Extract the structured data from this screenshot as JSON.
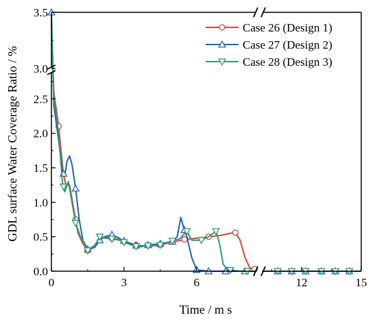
{
  "chart_data": {
    "type": "line",
    "xlabel": "Time / m s",
    "ylabel": "GDL surface Water Coverage Ratio / %",
    "x_ticks": [
      "0",
      "3",
      "6",
      "12",
      "15"
    ],
    "y_ticks": [
      "0.0",
      "0.5",
      "1.0",
      "1.5",
      "2.0",
      "2.5",
      "3.0",
      "3.5"
    ],
    "x_axis_break": [
      8.5,
      10.0
    ],
    "y_axis_break": [
      2.9,
      3.0
    ],
    "xlim": [
      0,
      15
    ],
    "ylim": [
      0,
      3.5
    ],
    "grid": false,
    "legend_position": "top-right",
    "series": [
      {
        "name": "Case 26 (Design 1)",
        "color": "#e0403a",
        "marker": "circle",
        "points": [
          [
            0,
            3.45
          ],
          [
            0.1,
            2.6
          ],
          [
            0.3,
            2.1
          ],
          [
            0.5,
            1.4
          ],
          [
            0.6,
            1.25
          ],
          [
            0.75,
            1.25
          ],
          [
            0.95,
            0.85
          ],
          [
            1.1,
            0.55
          ],
          [
            1.3,
            0.4
          ],
          [
            1.5,
            0.3
          ],
          [
            1.8,
            0.35
          ],
          [
            2.0,
            0.47
          ],
          [
            2.2,
            0.5
          ],
          [
            2.5,
            0.48
          ],
          [
            2.8,
            0.46
          ],
          [
            3.0,
            0.43
          ],
          [
            3.3,
            0.4
          ],
          [
            3.6,
            0.37
          ],
          [
            4.0,
            0.36
          ],
          [
            4.5,
            0.38
          ],
          [
            5.0,
            0.42
          ],
          [
            5.5,
            0.46
          ],
          [
            6.0,
            0.48
          ],
          [
            6.5,
            0.5
          ],
          [
            7.0,
            0.52
          ],
          [
            7.4,
            0.55
          ],
          [
            7.6,
            0.56
          ],
          [
            7.8,
            0.45
          ],
          [
            8.0,
            0.2
          ],
          [
            8.2,
            0.05
          ],
          [
            8.5,
            0.02
          ],
          [
            10.0,
            0.0
          ],
          [
            10.5,
            0.0
          ],
          [
            11.0,
            0.0
          ],
          [
            12.0,
            0.0
          ],
          [
            13.0,
            0.0
          ],
          [
            14.0,
            0.0
          ],
          [
            15.0,
            0.0
          ]
        ],
        "marker_x": [
          0.3,
          1.0,
          1.5,
          2.5,
          3.5,
          4.5,
          5.5,
          6.5,
          7.6,
          8.4,
          10.8,
          11.5,
          12.2,
          13.0,
          13.7,
          14.4
        ]
      },
      {
        "name": "Case 27 (Design 2)",
        "color": "#1f5fc4",
        "marker": "triangle-up",
        "points": [
          [
            0,
            3.5
          ],
          [
            0.1,
            2.4
          ],
          [
            0.3,
            1.9
          ],
          [
            0.45,
            1.45
          ],
          [
            0.55,
            1.38
          ],
          [
            0.65,
            1.6
          ],
          [
            0.75,
            1.67
          ],
          [
            0.85,
            1.55
          ],
          [
            1.0,
            1.2
          ],
          [
            1.15,
            0.75
          ],
          [
            1.3,
            0.45
          ],
          [
            1.5,
            0.32
          ],
          [
            1.8,
            0.35
          ],
          [
            2.0,
            0.45
          ],
          [
            2.2,
            0.5
          ],
          [
            2.5,
            0.53
          ],
          [
            2.8,
            0.48
          ],
          [
            3.0,
            0.44
          ],
          [
            3.3,
            0.4
          ],
          [
            3.6,
            0.36
          ],
          [
            4.0,
            0.38
          ],
          [
            4.5,
            0.4
          ],
          [
            5.0,
            0.43
          ],
          [
            5.2,
            0.5
          ],
          [
            5.35,
            0.78
          ],
          [
            5.45,
            0.65
          ],
          [
            5.6,
            0.5
          ],
          [
            5.8,
            0.2
          ],
          [
            6.0,
            0.02
          ],
          [
            6.5,
            0.0
          ],
          [
            7.5,
            0.0
          ],
          [
            8.5,
            0.0
          ],
          [
            10.0,
            0.0
          ],
          [
            11.0,
            0.0
          ],
          [
            12.0,
            0.0
          ],
          [
            13.0,
            0.0
          ],
          [
            14.0,
            0.0
          ],
          [
            15.0,
            0.0
          ]
        ],
        "marker_x": [
          0,
          0.5,
          1.0,
          1.5,
          2.0,
          2.5,
          3.0,
          3.5,
          4.0,
          4.5,
          5.0,
          5.5,
          6.0,
          6.5,
          7.2,
          8.0,
          10.8,
          11.5,
          12.2,
          13.0,
          13.7,
          14.4
        ]
      },
      {
        "name": "Case 28 (Design 3)",
        "color": "#2e9a6e",
        "marker": "triangle-down",
        "points": [
          [
            0,
            3.4
          ],
          [
            0.1,
            2.5
          ],
          [
            0.3,
            2.0
          ],
          [
            0.45,
            1.3
          ],
          [
            0.55,
            1.15
          ],
          [
            0.7,
            1.3
          ],
          [
            0.85,
            1.0
          ],
          [
            1.0,
            0.7
          ],
          [
            1.2,
            0.5
          ],
          [
            1.5,
            0.3
          ],
          [
            1.8,
            0.38
          ],
          [
            2.0,
            0.5
          ],
          [
            2.2,
            0.48
          ],
          [
            2.5,
            0.47
          ],
          [
            2.8,
            0.45
          ],
          [
            3.0,
            0.42
          ],
          [
            3.3,
            0.38
          ],
          [
            3.6,
            0.35
          ],
          [
            4.0,
            0.37
          ],
          [
            4.5,
            0.38
          ],
          [
            5.0,
            0.44
          ],
          [
            5.3,
            0.47
          ],
          [
            5.6,
            0.58
          ],
          [
            5.8,
            0.45
          ],
          [
            6.2,
            0.45
          ],
          [
            6.5,
            0.5
          ],
          [
            6.8,
            0.58
          ],
          [
            6.95,
            0.4
          ],
          [
            7.1,
            0.1
          ],
          [
            7.3,
            0.02
          ],
          [
            7.8,
            0.0
          ],
          [
            8.5,
            0.0
          ],
          [
            10.0,
            0.0
          ],
          [
            11.0,
            0.0
          ],
          [
            12.0,
            0.0
          ],
          [
            13.0,
            0.0
          ],
          [
            14.0,
            0.0
          ],
          [
            15.0,
            0.0
          ]
        ],
        "marker_x": [
          0.5,
          1.0,
          1.5,
          2.0,
          2.5,
          3.0,
          3.5,
          4.0,
          4.5,
          5.0,
          5.6,
          6.2,
          6.8,
          7.4,
          8.1,
          10.8,
          11.5,
          12.2,
          13.0,
          13.7,
          14.4
        ]
      }
    ]
  }
}
